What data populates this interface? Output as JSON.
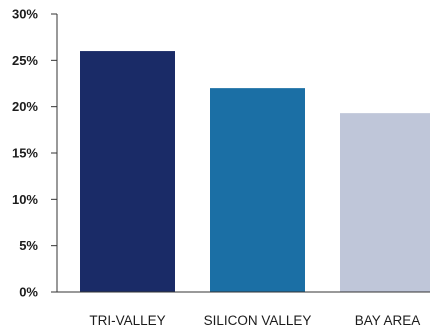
{
  "chart_data": {
    "type": "bar",
    "categories": [
      "TRI-VALLEY",
      "SILICON VALLEY",
      "BAY AREA"
    ],
    "values": [
      26,
      22,
      19.3
    ],
    "colors": [
      "#1a2b67",
      "#1b6fa5",
      "#bfc6d9"
    ],
    "ylim": [
      0,
      30
    ],
    "yticks": [
      0,
      5,
      10,
      15,
      20,
      25,
      30
    ],
    "ytick_labels": [
      "0%",
      "5%",
      "10%",
      "15%",
      "20%",
      "25%",
      "30%"
    ],
    "axis_color": "#333333",
    "grid": false,
    "legend": "none"
  }
}
